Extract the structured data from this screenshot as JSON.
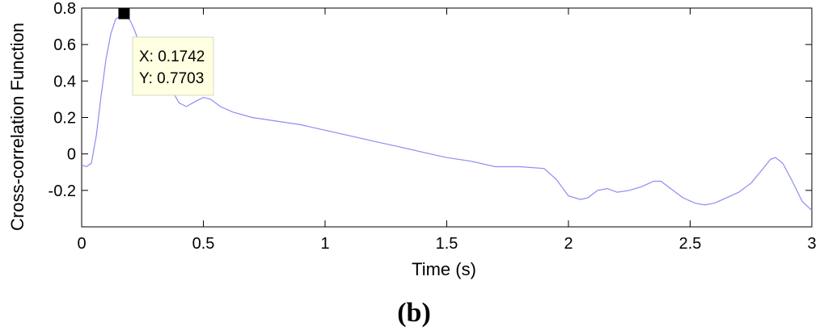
{
  "chart_data": {
    "type": "line",
    "xlabel": "Time (s)",
    "ylabel": "Cross-correlation Function",
    "panel_label_parts": [
      "(",
      "b",
      ")"
    ],
    "xlim": [
      0,
      3
    ],
    "ylim": [
      -0.4,
      0.8
    ],
    "xticks": [
      0,
      0.5,
      1,
      1.5,
      2,
      2.5,
      3
    ],
    "xtick_labels": [
      "0",
      "0.5",
      "1",
      "1.5",
      "2",
      "2.5",
      "3"
    ],
    "yticks": [
      -0.2,
      0,
      0.2,
      0.4,
      0.6,
      0.8
    ],
    "ytick_labels": [
      "-0.2",
      "0",
      "0.2",
      "0.4",
      "0.6",
      "0.8"
    ],
    "grid": false,
    "series_color": "#8c8cf2",
    "series": [
      {
        "x": [
          0,
          0.02,
          0.04,
          0.06,
          0.08,
          0.1,
          0.12,
          0.14,
          0.1742,
          0.2,
          0.22,
          0.25,
          0.3,
          0.35,
          0.4,
          0.43,
          0.47,
          0.5,
          0.53,
          0.57,
          0.62,
          0.7,
          0.8,
          0.9,
          1.0,
          1.1,
          1.2,
          1.3,
          1.4,
          1.5,
          1.6,
          1.7,
          1.8,
          1.9,
          1.95,
          2.0,
          2.05,
          2.08,
          2.12,
          2.16,
          2.2,
          2.25,
          2.3,
          2.35,
          2.38,
          2.42,
          2.47,
          2.52,
          2.56,
          2.6,
          2.65,
          2.7,
          2.75,
          2.8,
          2.83,
          2.85,
          2.88,
          2.92,
          2.96,
          3.0
        ],
        "y": [
          -0.06,
          -0.07,
          -0.05,
          0.1,
          0.32,
          0.52,
          0.66,
          0.74,
          0.7703,
          0.73,
          0.67,
          0.55,
          0.45,
          0.4,
          0.28,
          0.26,
          0.29,
          0.31,
          0.3,
          0.26,
          0.23,
          0.2,
          0.18,
          0.16,
          0.13,
          0.1,
          0.07,
          0.04,
          0.01,
          -0.02,
          -0.04,
          -0.07,
          -0.07,
          -0.08,
          -0.14,
          -0.23,
          -0.25,
          -0.24,
          -0.2,
          -0.19,
          -0.21,
          -0.2,
          -0.18,
          -0.15,
          -0.15,
          -0.19,
          -0.24,
          -0.27,
          -0.28,
          -0.27,
          -0.24,
          -0.21,
          -0.16,
          -0.08,
          -0.03,
          -0.02,
          -0.05,
          -0.15,
          -0.26,
          -0.31
        ]
      }
    ],
    "datatip": {
      "x": 0.1742,
      "y": 0.7703,
      "x_text": "X: 0.1742",
      "y_text": "Y: 0.7703"
    }
  }
}
